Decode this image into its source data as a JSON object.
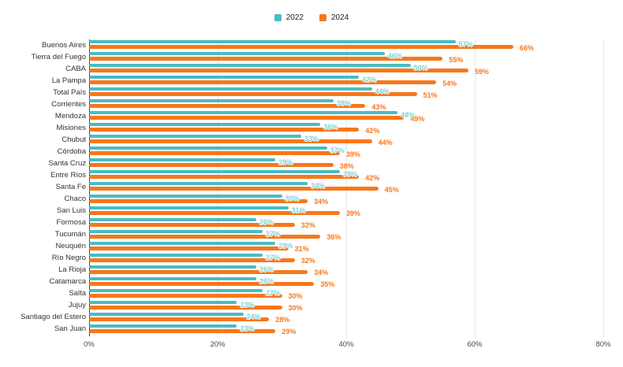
{
  "chart_data": {
    "type": "bar",
    "orientation": "horizontal",
    "title": "",
    "value_suffix": "%",
    "categories": [
      "Buenos Aires",
      "Tierra del Fuego",
      "CABA",
      "La Pampa",
      "Total País",
      "Corrientes",
      "Mendoza",
      "Misiones",
      "Chubut",
      "Córdoba",
      "Santa Cruz",
      "Entre Ríos",
      "Santa Fe",
      "Chaco",
      "San Luis",
      "Formosa",
      "Tucumán",
      "Neuquén",
      "Río Negro",
      "La Rioja",
      "Catamarca",
      "Salta",
      "Jujuy",
      "Santiago del Estero",
      "San Juan"
    ],
    "series": [
      {
        "name": "2022",
        "color": "#49BCC4",
        "label_color": "#7FD2D8",
        "values": [
          57,
          46,
          50,
          42,
          44,
          38,
          48,
          36,
          33,
          37,
          29,
          39,
          34,
          30,
          31,
          26,
          27,
          29,
          27,
          26,
          26,
          27,
          23,
          24,
          23
        ]
      },
      {
        "name": "2024",
        "color": "#F8771A",
        "label_color": "#F8771A",
        "values": [
          66,
          55,
          59,
          54,
          51,
          43,
          49,
          42,
          44,
          39,
          38,
          42,
          45,
          34,
          39,
          32,
          36,
          31,
          32,
          34,
          35,
          30,
          30,
          28,
          29
        ]
      }
    ],
    "xlim": [
      0,
      80
    ],
    "xticks": [
      {
        "value": 0,
        "label": "0%"
      },
      {
        "value": 20,
        "label": "20%"
      },
      {
        "value": 40,
        "label": "40%"
      },
      {
        "value": 60,
        "label": "60%"
      },
      {
        "value": 80,
        "label": "80%"
      }
    ],
    "grid": true,
    "legend_position": "top",
    "axis_color": "#3f3f3f",
    "gridline_color": "#e7e7e7"
  }
}
